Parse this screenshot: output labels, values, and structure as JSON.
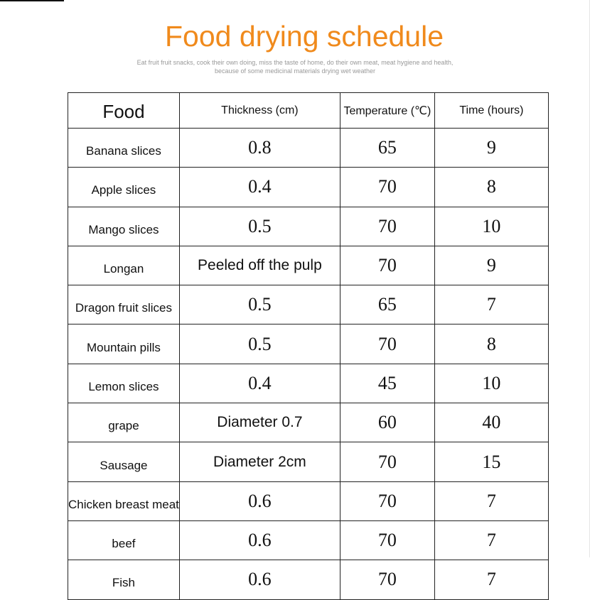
{
  "header": {
    "title": "Food drying schedule",
    "subtitle": "Eat fruit fruit snacks, cook their own doing, miss the taste of home, do their own meat, meat hygiene and health, because of some medicinal materials drying wet weather"
  },
  "table": {
    "header": [
      "Food",
      "Thickness (cm)",
      "Temperature (℃)",
      "Time (hours)"
    ],
    "rows": [
      [
        "Banana slices",
        "0.8",
        "65",
        "9"
      ],
      [
        "Apple slices",
        "0.4",
        "70",
        "8"
      ],
      [
        "Mango slices",
        "0.5",
        "70",
        "10"
      ],
      [
        "Longan",
        "Peeled off the pulp",
        "70",
        "9"
      ],
      [
        "Dragon fruit slices",
        "0.5",
        "65",
        "7"
      ],
      [
        "Mountain pills",
        "0.5",
        "70",
        "8"
      ],
      [
        "Lemon slices",
        "0.4",
        "45",
        "10"
      ],
      [
        "grape",
        "Diameter 0.7",
        "60",
        "40"
      ],
      [
        "Sausage",
        "Diameter 2cm",
        "70",
        "15"
      ],
      [
        "Chicken breast meat",
        "0.6",
        "70",
        "7"
      ],
      [
        "beef",
        "0.6",
        "70",
        "7"
      ],
      [
        "Fish",
        "0.6",
        "70",
        "7"
      ]
    ]
  }
}
